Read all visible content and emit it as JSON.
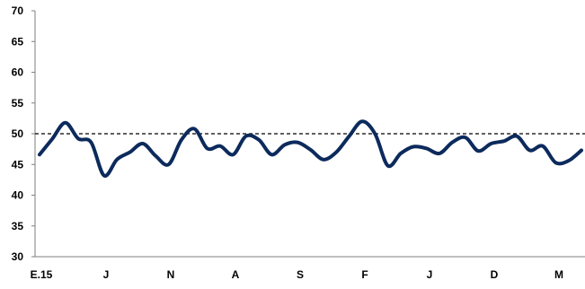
{
  "chart_data": {
    "type": "line",
    "title": "",
    "xlabel": "",
    "ylabel": "",
    "ylim": [
      30,
      70
    ],
    "yticks": [
      30,
      35,
      40,
      45,
      50,
      55,
      60,
      65,
      70
    ],
    "x_tick_labels": [
      "E.15",
      "J",
      "N",
      "A",
      "S",
      "F",
      "J",
      "D",
      "M"
    ],
    "grid": false,
    "reference_line": {
      "value": 50,
      "style": "dashed",
      "color": "#000000"
    },
    "series": [
      {
        "color": "#0c2a5c",
        "values": [
          46.6,
          49.2,
          51.8,
          49.2,
          48.6,
          43.2,
          45.8,
          47.0,
          48.4,
          46.4,
          45.0,
          49.0,
          50.8,
          47.6,
          48.0,
          46.6,
          49.6,
          49.0,
          46.6,
          48.2,
          48.6,
          47.4,
          45.8,
          47.0,
          49.6,
          52.0,
          50.0,
          44.8,
          46.8,
          47.9,
          47.6,
          46.8,
          48.6,
          49.4,
          47.2,
          48.4,
          48.8,
          49.6,
          47.3,
          48.0,
          45.3,
          45.6,
          47.3
        ]
      }
    ]
  }
}
